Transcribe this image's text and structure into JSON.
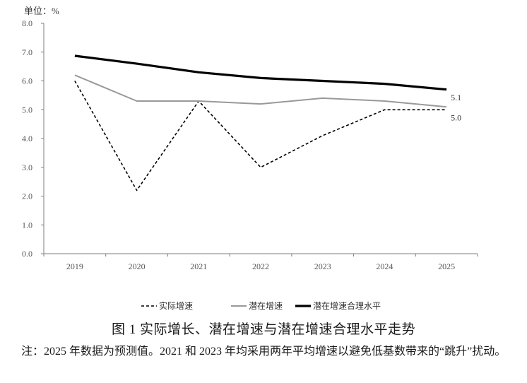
{
  "chart_data": {
    "type": "line",
    "unit_label": "单位：%",
    "x": [
      "2019",
      "2020",
      "2021",
      "2022",
      "2023",
      "2024",
      "2025"
    ],
    "y_ticks": [
      "0.0",
      "1.0",
      "2.0",
      "3.0",
      "4.0",
      "5.0",
      "6.0",
      "7.0",
      "8.0"
    ],
    "ylim": [
      0,
      8
    ],
    "grid": false,
    "legend_position": "bottom",
    "series": [
      {
        "name": "实际增速",
        "style": "dashed",
        "color": "#000000",
        "values": [
          6.0,
          2.2,
          5.3,
          3.0,
          4.1,
          5.0,
          5.0
        ]
      },
      {
        "name": "潜在增速",
        "style": "solid",
        "color": "#999999",
        "values": [
          6.2,
          5.3,
          5.3,
          5.2,
          5.4,
          5.3,
          5.1
        ]
      },
      {
        "name": "潜在增速合理水平",
        "style": "solid-thick",
        "color": "#000000",
        "values": [
          6.87,
          6.6,
          6.3,
          6.1,
          6.0,
          5.9,
          5.7
        ]
      }
    ],
    "annotations": [
      "5.1",
      "5.0"
    ]
  },
  "caption": "图 1  实际增长、潜在增速与潜在增速合理水平走势",
  "note": "注：2025 年数据为预测值。2021 和 2023 年均采用两年平均增速以避免低基数带来的“跳升”扰动。"
}
